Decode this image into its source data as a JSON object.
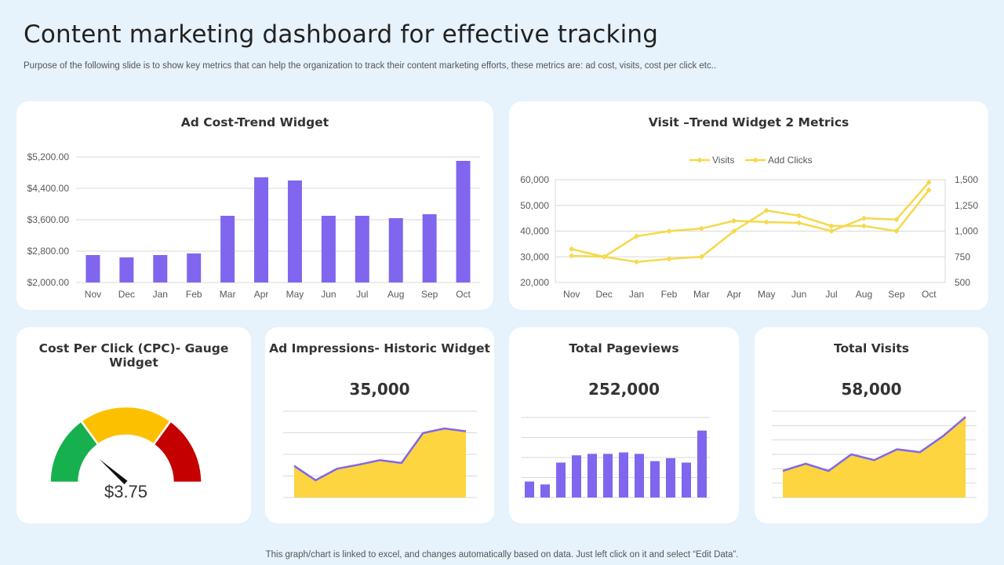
{
  "header": {
    "title": "Content marketing dashboard for effective tracking",
    "subtitle": "Purpose of the following slide is to show key metrics that can help the organization to track their content marketing efforts, these metrics are: ad cost, visits, cost per click etc.."
  },
  "footer": {
    "note": "This graph/chart is linked to excel,  and changes automatically based on data. Just left click on it and select “Edit Data”."
  },
  "colors": {
    "purple": "#8066ee",
    "yellow": "#fcd540",
    "line_yellow": "#f5d94a",
    "gauge_green": "#17b04e",
    "gauge_yellow": "#fcc000",
    "gauge_red": "#c40000"
  },
  "widgets": {
    "ad_cost": {
      "title": "Ad Cost-Trend Widget"
    },
    "visit_trend": {
      "title": "Visit –Trend Widget 2 Metrics"
    },
    "cpc": {
      "title": "Cost Per Click (CPC)- Gauge Widget",
      "value_label": "$3.75"
    },
    "impressions": {
      "title": "Ad Impressions- Historic Widget",
      "value": "35,000"
    },
    "pageviews": {
      "title": "Total Pageviews",
      "value": "252,000"
    },
    "visits": {
      "title": "Total Visits",
      "value": "58,000"
    }
  },
  "chart_data": [
    {
      "id": "ad_cost",
      "type": "bar",
      "title": "Ad Cost-Trend Widget",
      "categories": [
        "Nov",
        "Dec",
        "Jan",
        "Feb",
        "Mar",
        "Apr",
        "May",
        "Jun",
        "Jul",
        "Aug",
        "Sep",
        "Oct"
      ],
      "values": [
        2700,
        2640,
        2700,
        2740,
        3700,
        4680,
        4600,
        3700,
        3700,
        3640,
        3740,
        5100
      ],
      "ylim": [
        2000,
        5200
      ],
      "yticks": [
        2000,
        2800,
        3600,
        4400,
        5200
      ],
      "ytick_labels": [
        "$2,000.00",
        "$2,800.00",
        "$3,600.00",
        "$4,400.00",
        "$5,200.00"
      ]
    },
    {
      "id": "visit_trend",
      "type": "line",
      "title": "Visit –Trend Widget 2 Metrics",
      "categories": [
        "Nov",
        "Dec",
        "Jan",
        "Feb",
        "Mar",
        "Apr",
        "May",
        "Jun",
        "Jul",
        "Aug",
        "Sep",
        "Oct"
      ],
      "series": [
        {
          "name": "Visits",
          "axis": "left",
          "values": [
            33000,
            30000,
            38000,
            40000,
            41000,
            44000,
            43500,
            43200,
            40000,
            45000,
            44500,
            59000
          ]
        },
        {
          "name": "Add Clicks",
          "axis": "right",
          "values": [
            760,
            750,
            700,
            730,
            750,
            1000,
            1200,
            1150,
            1050,
            1050,
            1000,
            1400
          ]
        }
      ],
      "ylim_left": [
        20000,
        60000
      ],
      "yticks_left": [
        "20,000",
        "30,000",
        "40,000",
        "50,000",
        "60,000"
      ],
      "ylim_right": [
        500,
        1500
      ],
      "yticks_right": [
        "500",
        "750",
        "1,000",
        "1,250",
        "1,500"
      ],
      "legend_position": "top-center"
    },
    {
      "id": "cpc_gauge",
      "type": "gauge",
      "bands": [
        "green",
        "yellow",
        "red"
      ],
      "needle_fraction": 0.23,
      "label": "$3.75"
    },
    {
      "id": "impressions",
      "type": "area",
      "values": [
        55,
        30,
        50,
        57,
        65,
        60,
        112,
        120,
        115
      ],
      "ylim": [
        0,
        150
      ]
    },
    {
      "id": "pageviews",
      "type": "bar",
      "values": [
        22,
        18,
        48,
        58,
        60,
        60,
        62,
        60,
        50,
        54,
        48,
        92
      ],
      "ylim": [
        0,
        110
      ]
    },
    {
      "id": "visits",
      "type": "area",
      "values": [
        37,
        47,
        37,
        60,
        52,
        67,
        63,
        85,
        112
      ],
      "ylim": [
        0,
        120
      ]
    }
  ]
}
